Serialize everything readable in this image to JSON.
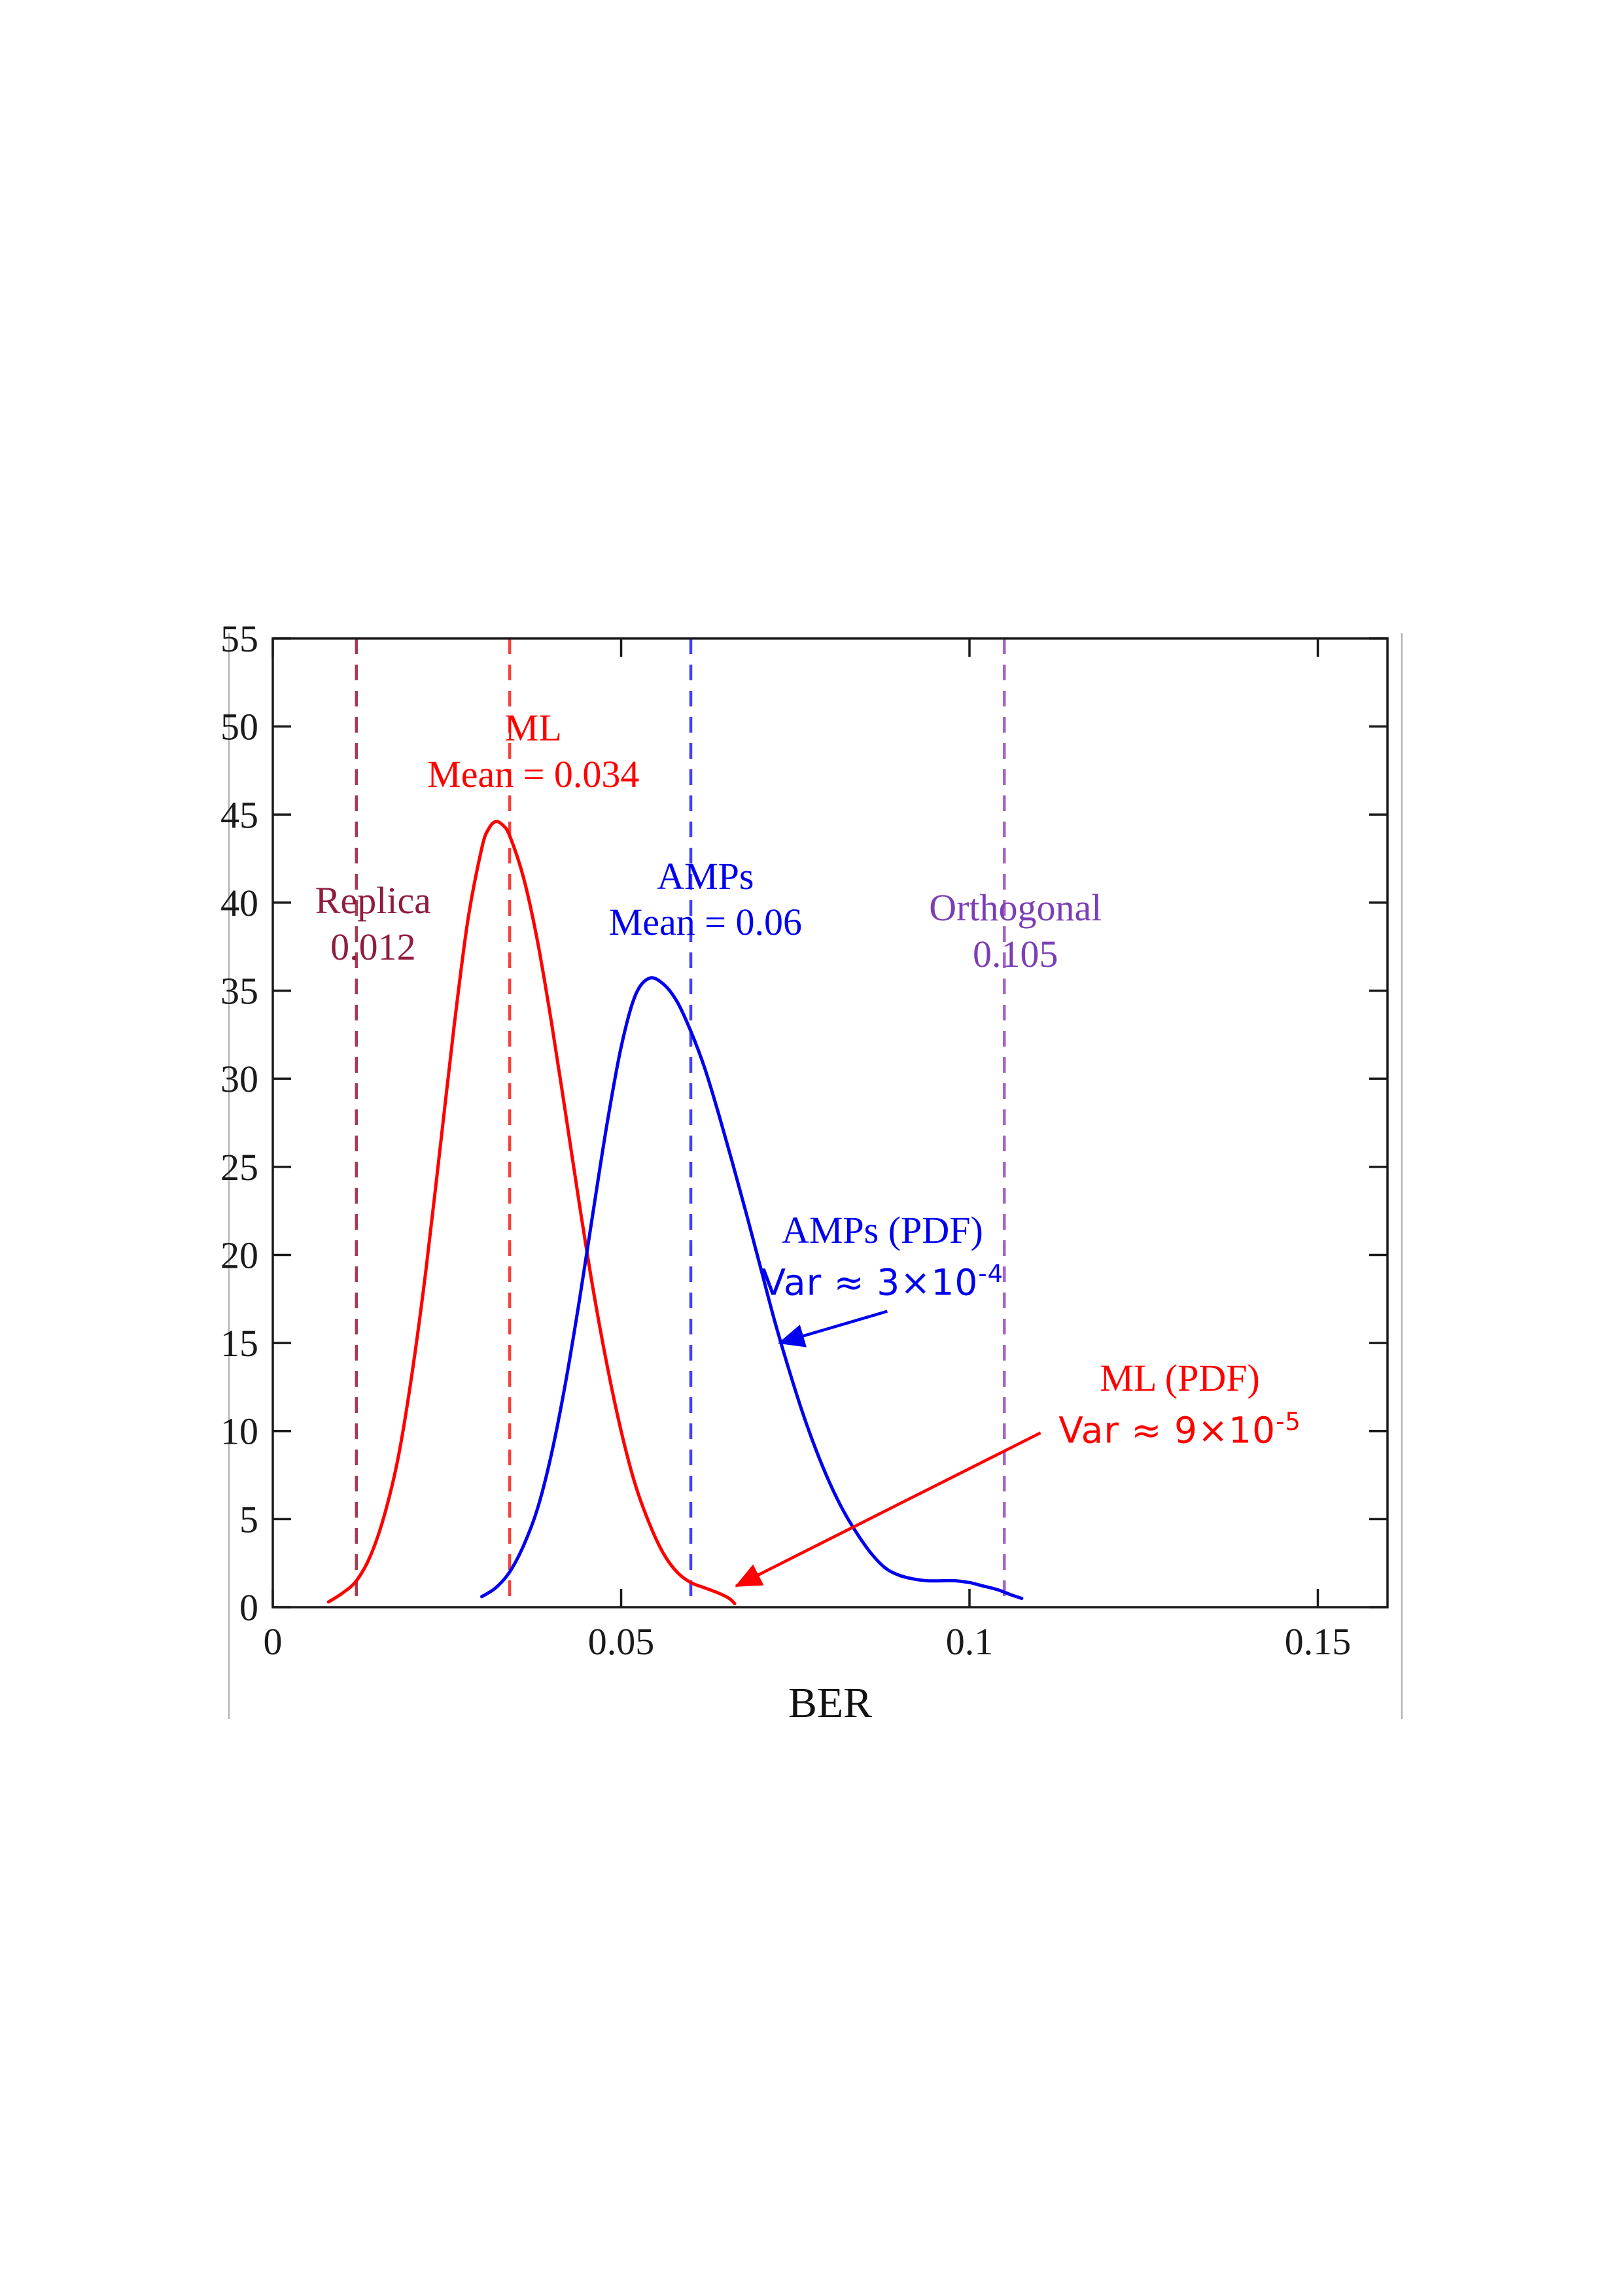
{
  "chart_data": {
    "type": "line",
    "title": "",
    "xlabel": "BER",
    "ylabel": "",
    "xlim": [
      0,
      0.16
    ],
    "ylim": [
      0,
      55
    ],
    "grid": false,
    "legend": "none",
    "xticks": {
      "values": [
        0,
        0.05,
        0.1,
        0.15
      ],
      "labels": [
        "0",
        "0.05",
        "0.1",
        "0.15"
      ]
    },
    "yticks": {
      "values": [
        0,
        5,
        10,
        15,
        20,
        25,
        30,
        35,
        40,
        45,
        50,
        55
      ],
      "labels": [
        "0",
        "5",
        "10",
        "15",
        "20",
        "25",
        "30",
        "35",
        "40",
        "45",
        "50",
        "55"
      ]
    },
    "axis_color": "#1a1a1a",
    "series": [
      {
        "name": "ML (PDF)",
        "color": "#ff0000",
        "x": [
          0.008,
          0.01,
          0.012,
          0.014,
          0.016,
          0.018,
          0.02,
          0.022,
          0.024,
          0.026,
          0.028,
          0.03,
          0.031,
          0.032,
          0.033,
          0.034,
          0.036,
          0.038,
          0.04,
          0.042,
          0.044,
          0.046,
          0.048,
          0.05,
          0.052,
          0.054,
          0.056,
          0.058,
          0.06,
          0.062,
          0.064,
          0.0655,
          0.0663
        ],
        "y": [
          0.3,
          0.8,
          1.5,
          2.9,
          5.2,
          8.5,
          13.3,
          19.2,
          26.0,
          32.9,
          39.0,
          43.1,
          44.2,
          44.6,
          44.4,
          43.8,
          41.4,
          37.8,
          33.2,
          28.1,
          22.9,
          18.0,
          13.7,
          10.0,
          7.0,
          4.8,
          3.1,
          2.0,
          1.4,
          1.1,
          0.8,
          0.5,
          0.2
        ],
        "peak": {
          "x": 0.032,
          "y": 44.6
        },
        "mean": 0.034,
        "variance": "9e-5"
      },
      {
        "name": "AMPs (PDF)",
        "color": "#0000ee",
        "x": [
          0.03,
          0.032,
          0.034,
          0.036,
          0.038,
          0.04,
          0.042,
          0.044,
          0.046,
          0.048,
          0.05,
          0.052,
          0.054,
          0.056,
          0.058,
          0.06,
          0.062,
          0.064,
          0.066,
          0.068,
          0.07,
          0.072,
          0.074,
          0.076,
          0.078,
          0.08,
          0.082,
          0.084,
          0.086,
          0.088,
          0.09,
          0.092,
          0.094,
          0.096,
          0.098,
          0.1,
          0.102,
          0.104,
          0.106,
          0.1075
        ],
        "y": [
          0.6,
          1.1,
          2.0,
          3.5,
          5.6,
          8.7,
          12.7,
          17.4,
          22.5,
          27.5,
          31.8,
          34.7,
          35.7,
          35.4,
          34.4,
          32.7,
          30.6,
          28.0,
          25.2,
          22.3,
          19.3,
          16.3,
          13.6,
          11.1,
          8.9,
          7.0,
          5.4,
          4.1,
          3.0,
          2.2,
          1.8,
          1.6,
          1.5,
          1.5,
          1.5,
          1.4,
          1.2,
          1.0,
          0.7,
          0.5
        ],
        "peak": {
          "x": 0.054,
          "y": 35.7
        },
        "mean": 0.06,
        "variance": "3e-4"
      }
    ],
    "vlines": [
      {
        "name": "replica-line",
        "x": 0.012,
        "color": "#a33c52",
        "style": "dashed"
      },
      {
        "name": "ml-mean-line",
        "x": 0.034,
        "color": "#f5413b",
        "style": "dashed"
      },
      {
        "name": "amps-mean-line",
        "x": 0.06,
        "color": "#4040ff",
        "style": "dashed"
      },
      {
        "name": "orthogonal-line",
        "x": 0.105,
        "color": "#a95fd3",
        "style": "dashed"
      }
    ],
    "annotations": {
      "ml_mean": {
        "lines": [
          "ML",
          "Mean = 0.034"
        ],
        "color": "#ff0000",
        "anchor": [
          0.0374,
          51.2
        ]
      },
      "amps_mean": {
        "lines": [
          "AMPs",
          "Mean = 0.06"
        ],
        "color": "#0000ee",
        "anchor": [
          0.0621,
          42.8
        ]
      },
      "replica": {
        "lines": [
          "Replica",
          "0.012"
        ],
        "color": "#8f1d3d",
        "anchor": [
          0.0144,
          41.4
        ]
      },
      "orthogonal": {
        "lines": [
          "Orthogonal",
          "0.105"
        ],
        "color": "#7b3fb5",
        "anchor": [
          0.1066,
          41.0
        ]
      },
      "amps_pdf": {
        "line1": "AMPs (PDF)",
        "var_prefix": "Var ≈ 3×10",
        "var_sup": "-4",
        "color": "#0000ee",
        "anchor": [
          0.0875,
          22.7
        ]
      },
      "ml_pdf": {
        "line1": "ML (PDF)",
        "var_prefix": "Var ≈ 9×10",
        "var_sup": "-5",
        "color": "#ff0000",
        "anchor": [
          0.1302,
          14.3
        ]
      }
    },
    "arrows": [
      {
        "name": "amps-pdf-arrow",
        "color": "#0000ee",
        "from": [
          0.0882,
          16.8
        ],
        "to": [
          0.0727,
          15.0
        ]
      },
      {
        "name": "ml-pdf-arrow",
        "color": "#ff0000",
        "from": [
          0.1102,
          9.9
        ],
        "to": [
          0.0665,
          1.2
        ]
      }
    ]
  }
}
